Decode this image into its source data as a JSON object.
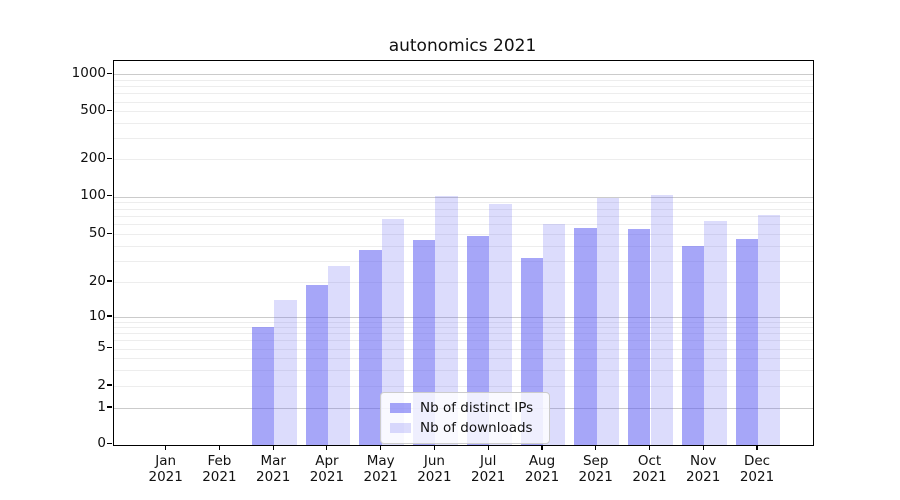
{
  "title": "autonomics 2021",
  "year_label": "2021",
  "colors": {
    "bar_distinct_ips": "rgba(92,92,242,0.55)",
    "bar_downloads": "rgba(92,92,242,0.21)",
    "grid_major": "#cbcbcb",
    "grid_minor": "#ededed",
    "axes": "#000000",
    "background": "#ffffff"
  },
  "chart_data": {
    "type": "bar",
    "title": "autonomics 2021",
    "categories": [
      "Jan 2021",
      "Feb 2021",
      "Mar 2021",
      "Apr 2021",
      "May 2021",
      "Jun 2021",
      "Jul 2021",
      "Aug 2021",
      "Sep 2021",
      "Oct 2021",
      "Nov 2021",
      "Dec 2021"
    ],
    "month_labels": [
      "Jan",
      "Feb",
      "Mar",
      "Apr",
      "May",
      "Jun",
      "Jul",
      "Aug",
      "Sep",
      "Oct",
      "Nov",
      "Dec"
    ],
    "series": [
      {
        "name": "Nb of distinct IPs",
        "color": "rgba(92,92,242,0.55)",
        "values": [
          0,
          0,
          8,
          19,
          37,
          45,
          48,
          32,
          56,
          55,
          40,
          46
        ]
      },
      {
        "name": "Nb of downloads",
        "color": "rgba(92,92,242,0.21)",
        "values": [
          0,
          0,
          14,
          27,
          66,
          101,
          88,
          61,
          97,
          104,
          64,
          72
        ]
      }
    ],
    "xlabel": "",
    "ylabel": "",
    "yscale": "symlog",
    "yticks": [
      0,
      1,
      2,
      5,
      10,
      20,
      50,
      100,
      200,
      500,
      1000
    ],
    "ylim": [
      0,
      1300
    ],
    "grid": true,
    "legend_position": "lower center inside"
  }
}
